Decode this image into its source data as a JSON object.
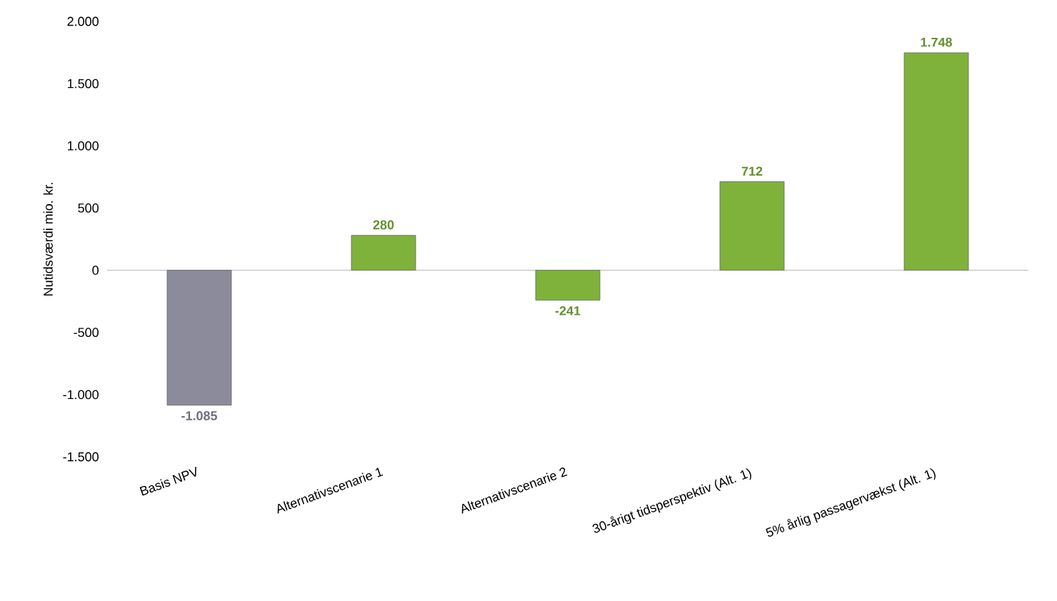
{
  "chart_data": {
    "type": "bar",
    "ylabel": "Nutidsværdi mio. kr.",
    "categories": [
      "Basis NPV",
      "Alternativscenarie 1",
      "Alternativscenarie 2",
      "30-årigt tidsperspektiv (Alt. 1)",
      "5% årlig passagervækst (Alt. 1)"
    ],
    "values": [
      -1085,
      280,
      -241,
      712,
      1748
    ],
    "colors": [
      "#8b8b9b",
      "#7fb23a",
      "#7fb23a",
      "#7fb23a",
      "#7fb23a"
    ],
    "value_labels": [
      "-1.085",
      "280",
      "-241",
      "712",
      "1.748"
    ],
    "ylim": [
      -1500,
      2000
    ],
    "yticks": [
      {
        "value": -1500,
        "label": "-1.500"
      },
      {
        "value": -1000,
        "label": "-1.000"
      },
      {
        "value": -500,
        "label": "-500"
      },
      {
        "value": 0,
        "label": "0"
      },
      {
        "value": 500,
        "label": "500"
      },
      {
        "value": 1000,
        "label": "1.000"
      },
      {
        "value": 1500,
        "label": "1.500"
      },
      {
        "value": 2000,
        "label": "2.000"
      }
    ]
  }
}
